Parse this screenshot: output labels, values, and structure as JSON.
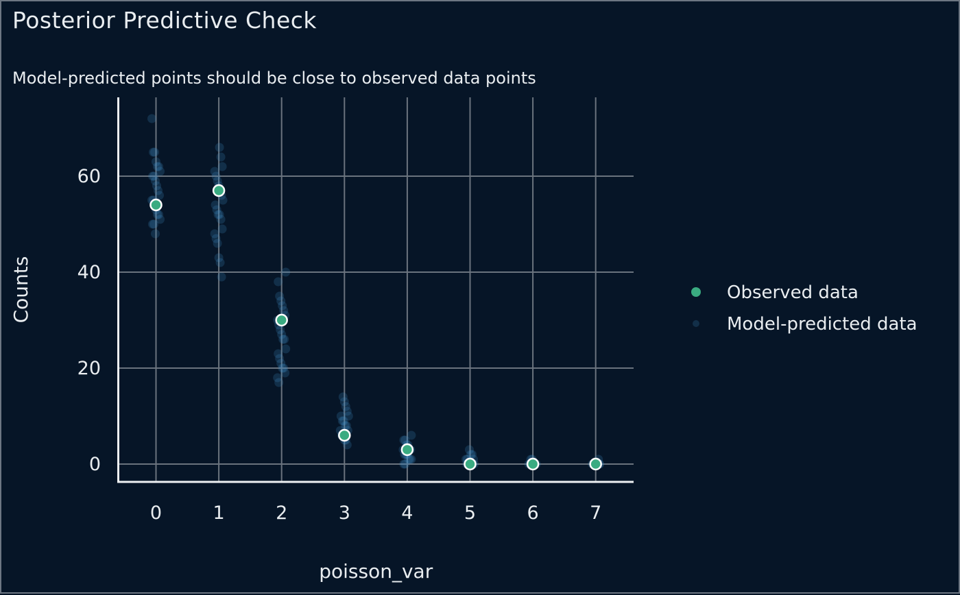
{
  "header": {
    "title": "Posterior Predictive Check",
    "subtitle": "Model-predicted points should be close to observed data points"
  },
  "colors": {
    "background": "#061527",
    "border": "#6d7682",
    "grid": "#6a737e",
    "spine": "#eef1f3",
    "text": "#e9edf0",
    "observed": "#3aab81",
    "observed_edge": "#ffffff",
    "predicted": "#3e8ec4"
  },
  "chart_data": {
    "type": "scatter",
    "title": "Posterior Predictive Check",
    "subtitle": "Model-predicted points should be close to observed data points",
    "xlabel": "poisson_var",
    "ylabel": "Counts",
    "x_ticks": [
      0,
      1,
      2,
      3,
      4,
      5,
      6,
      7
    ],
    "y_ticks": [
      0,
      20,
      40,
      60
    ],
    "xlim": [
      -0.6,
      7.6
    ],
    "ylim": [
      0,
      76.5
    ],
    "grid": true,
    "legend_position": "right",
    "legend": [
      {
        "label": "Observed data",
        "marker": "dot",
        "color": "#3aab81",
        "size": 14
      },
      {
        "label": "Model-predicted data",
        "marker": "dot",
        "color": "#3e8ec4",
        "size": 10
      }
    ],
    "series": [
      {
        "name": "Observed data",
        "points": [
          [
            0,
            54
          ],
          [
            1,
            57
          ],
          [
            2,
            30
          ],
          [
            3,
            6
          ],
          [
            4,
            3
          ],
          [
            5,
            0
          ],
          [
            6,
            0
          ],
          [
            7,
            0
          ]
        ]
      },
      {
        "name": "Model-predicted data",
        "opacity": 0.22,
        "points_by_x": {
          "0": [
            72,
            65,
            65,
            63,
            62,
            62,
            61,
            60,
            60,
            59,
            58,
            57,
            56,
            55,
            55,
            54,
            53,
            52,
            52,
            51,
            50,
            50,
            48
          ],
          "1": [
            66,
            64,
            62,
            61,
            60,
            59,
            58,
            57,
            56,
            55,
            54,
            53,
            52,
            52,
            51,
            49,
            48,
            47,
            46,
            43,
            42,
            39
          ],
          "2": [
            40,
            38,
            35,
            34,
            33,
            32,
            31,
            30,
            29,
            28,
            27,
            26,
            26,
            24,
            23,
            22,
            21,
            20,
            20,
            19,
            18,
            17
          ],
          "3": [
            14,
            13,
            12,
            11,
            10,
            10,
            9,
            9,
            8,
            8,
            7,
            7,
            6,
            6,
            5,
            5,
            4
          ],
          "4": [
            6,
            5,
            5,
            4,
            4,
            3,
            3,
            3,
            2,
            2,
            2,
            1,
            1,
            1,
            0,
            0
          ],
          "5": [
            3,
            2,
            2,
            1,
            1,
            1,
            0,
            0,
            0,
            0,
            0,
            0
          ],
          "6": [
            1,
            1,
            0,
            0,
            0,
            0,
            0,
            0,
            0,
            0
          ],
          "7": [
            1,
            0,
            0,
            0,
            0,
            0,
            0,
            0
          ]
        }
      }
    ]
  }
}
